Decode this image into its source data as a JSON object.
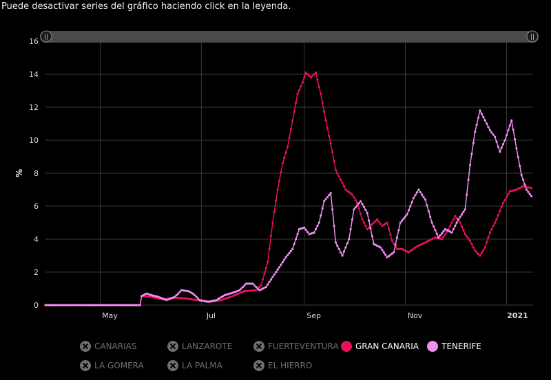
{
  "instruction": "Puede desactivar series del gráfico haciendo click en la leyenda.",
  "colors": {
    "background": "#000000",
    "grid": "#3a3a3a",
    "gran_canaria": "#e8105a",
    "tenerife": "#f08ff0",
    "disabled": "#6f6f6f",
    "navigator": "#4a4a4a"
  },
  "chart_data": {
    "type": "line",
    "title": "",
    "xlabel": "",
    "ylabel": "%",
    "ylim": [
      0,
      16
    ],
    "yticks": [
      "0",
      "2",
      "4",
      "6",
      "8",
      "10",
      "12",
      "14",
      "16"
    ],
    "xticks": [
      {
        "date": "2020-05-01",
        "label": "May"
      },
      {
        "date": "2020-07-01",
        "label": "Jul"
      },
      {
        "date": "2020-09-01",
        "label": "Sep"
      },
      {
        "date": "2020-11-01",
        "label": "Nov"
      },
      {
        "date": "2021-01-01",
        "label": "2021"
      }
    ],
    "xrange": [
      "2020-03-29",
      "2021-01-17"
    ],
    "grid": true,
    "legend_position": "bottom",
    "series": [
      {
        "name": "GRAN CANARIA",
        "color": "#e8105a",
        "points": [
          [
            "2020-03-29",
            0
          ],
          [
            "2020-05-25",
            0
          ],
          [
            "2020-05-26",
            0.55
          ],
          [
            "2020-06-01",
            0.5
          ],
          [
            "2020-06-08",
            0.35
          ],
          [
            "2020-06-15",
            0.45
          ],
          [
            "2020-06-22",
            0.4
          ],
          [
            "2020-06-29",
            0.3
          ],
          [
            "2020-07-06",
            0.2
          ],
          [
            "2020-07-13",
            0.3
          ],
          [
            "2020-07-20",
            0.55
          ],
          [
            "2020-07-27",
            0.85
          ],
          [
            "2020-08-03",
            0.9
          ],
          [
            "2020-08-06",
            1.2
          ],
          [
            "2020-08-10",
            2.6
          ],
          [
            "2020-08-13",
            5.0
          ],
          [
            "2020-08-16",
            7.0
          ],
          [
            "2020-08-19",
            8.6
          ],
          [
            "2020-08-22",
            9.6
          ],
          [
            "2020-08-25",
            11.2
          ],
          [
            "2020-08-28",
            12.8
          ],
          [
            "2020-08-31",
            13.5
          ],
          [
            "2020-09-02",
            14.1
          ],
          [
            "2020-09-05",
            13.8
          ],
          [
            "2020-09-08",
            14.1
          ],
          [
            "2020-09-11",
            12.8
          ],
          [
            "2020-09-14",
            11.2
          ],
          [
            "2020-09-17",
            9.8
          ],
          [
            "2020-09-20",
            8.2
          ],
          [
            "2020-09-23",
            7.6
          ],
          [
            "2020-09-26",
            7.0
          ],
          [
            "2020-09-30",
            6.7
          ],
          [
            "2020-10-03",
            6.2
          ],
          [
            "2020-10-06",
            5.2
          ],
          [
            "2020-10-09",
            4.6
          ],
          [
            "2020-10-12",
            4.9
          ],
          [
            "2020-10-15",
            5.2
          ],
          [
            "2020-10-18",
            4.8
          ],
          [
            "2020-10-21",
            5.0
          ],
          [
            "2020-10-24",
            3.9
          ],
          [
            "2020-10-27",
            3.4
          ],
          [
            "2020-10-30",
            3.4
          ],
          [
            "2020-11-03",
            3.2
          ],
          [
            "2020-11-07",
            3.5
          ],
          [
            "2020-11-11",
            3.7
          ],
          [
            "2020-11-15",
            3.9
          ],
          [
            "2020-11-19",
            4.1
          ],
          [
            "2020-11-23",
            4.0
          ],
          [
            "2020-11-27",
            4.6
          ],
          [
            "2020-12-01",
            5.4
          ],
          [
            "2020-12-04",
            5.0
          ],
          [
            "2020-12-07",
            4.3
          ],
          [
            "2020-12-10",
            3.9
          ],
          [
            "2020-12-13",
            3.3
          ],
          [
            "2020-12-16",
            3.0
          ],
          [
            "2020-12-19",
            3.5
          ],
          [
            "2020-12-22",
            4.4
          ],
          [
            "2020-12-26",
            5.2
          ],
          [
            "2020-12-30",
            6.2
          ],
          [
            "2021-01-03",
            6.9
          ],
          [
            "2021-01-07",
            7.0
          ],
          [
            "2021-01-11",
            7.2
          ],
          [
            "2021-01-16",
            7.1
          ]
        ]
      },
      {
        "name": "TENERIFE",
        "color": "#f08ff0",
        "points": [
          [
            "2020-03-29",
            0
          ],
          [
            "2020-05-25",
            0
          ],
          [
            "2020-05-26",
            0.55
          ],
          [
            "2020-05-29",
            0.7
          ],
          [
            "2020-06-01",
            0.6
          ],
          [
            "2020-06-05",
            0.5
          ],
          [
            "2020-06-10",
            0.3
          ],
          [
            "2020-06-15",
            0.5
          ],
          [
            "2020-06-19",
            0.9
          ],
          [
            "2020-06-23",
            0.85
          ],
          [
            "2020-06-26",
            0.7
          ],
          [
            "2020-06-30",
            0.3
          ],
          [
            "2020-07-05",
            0.2
          ],
          [
            "2020-07-10",
            0.3
          ],
          [
            "2020-07-15",
            0.6
          ],
          [
            "2020-07-20",
            0.75
          ],
          [
            "2020-07-24",
            0.9
          ],
          [
            "2020-07-28",
            1.3
          ],
          [
            "2020-08-01",
            1.3
          ],
          [
            "2020-08-05",
            0.9
          ],
          [
            "2020-08-09",
            1.1
          ],
          [
            "2020-08-13",
            1.7
          ],
          [
            "2020-08-17",
            2.3
          ],
          [
            "2020-08-21",
            2.9
          ],
          [
            "2020-08-25",
            3.4
          ],
          [
            "2020-08-29",
            4.6
          ],
          [
            "2020-09-01",
            4.7
          ],
          [
            "2020-09-04",
            4.3
          ],
          [
            "2020-09-07",
            4.4
          ],
          [
            "2020-09-10",
            5.0
          ],
          [
            "2020-09-13",
            6.3
          ],
          [
            "2020-09-17",
            6.8
          ],
          [
            "2020-09-20",
            3.8
          ],
          [
            "2020-09-24",
            3.0
          ],
          [
            "2020-09-28",
            4.0
          ],
          [
            "2020-10-01",
            5.8
          ],
          [
            "2020-10-05",
            6.3
          ],
          [
            "2020-10-09",
            5.6
          ],
          [
            "2020-10-13",
            3.7
          ],
          [
            "2020-10-17",
            3.5
          ],
          [
            "2020-10-21",
            2.9
          ],
          [
            "2020-10-25",
            3.2
          ],
          [
            "2020-10-29",
            5.0
          ],
          [
            "2020-11-02",
            5.5
          ],
          [
            "2020-11-06",
            6.5
          ],
          [
            "2020-11-09",
            7.0
          ],
          [
            "2020-11-13",
            6.4
          ],
          [
            "2020-11-17",
            5.0
          ],
          [
            "2020-11-21",
            4.1
          ],
          [
            "2020-11-25",
            4.6
          ],
          [
            "2020-11-29",
            4.4
          ],
          [
            "2020-12-03",
            5.2
          ],
          [
            "2020-12-07",
            5.8
          ],
          [
            "2020-12-10",
            8.5
          ],
          [
            "2020-12-13",
            10.5
          ],
          [
            "2020-12-16",
            11.8
          ],
          [
            "2020-12-19",
            11.2
          ],
          [
            "2020-12-22",
            10.6
          ],
          [
            "2020-12-25",
            10.2
          ],
          [
            "2020-12-28",
            9.3
          ],
          [
            "2020-12-31",
            10.0
          ],
          [
            "2021-01-04",
            11.2
          ],
          [
            "2021-01-07",
            9.5
          ],
          [
            "2021-01-10",
            7.9
          ],
          [
            "2021-01-13",
            7.0
          ],
          [
            "2021-01-16",
            6.6
          ]
        ]
      }
    ]
  },
  "legend": [
    {
      "label": "CANARIAS",
      "color": "#6f6f6f",
      "enabled": false
    },
    {
      "label": "LANZAROTE",
      "color": "#6f6f6f",
      "enabled": false
    },
    {
      "label": "FUERTEVENTURA",
      "color": "#6f6f6f",
      "enabled": false
    },
    {
      "label": "GRAN CANARIA",
      "color": "#e8105a",
      "enabled": true
    },
    {
      "label": "TENERIFE",
      "color": "#f08ff0",
      "enabled": true
    },
    {
      "label": "LA GOMERA",
      "color": "#6f6f6f",
      "enabled": false
    },
    {
      "label": "LA PALMA",
      "color": "#6f6f6f",
      "enabled": false
    },
    {
      "label": "EL HIERRO",
      "color": "#6f6f6f",
      "enabled": false
    }
  ],
  "navigator": {
    "handle_glyph": "||"
  }
}
